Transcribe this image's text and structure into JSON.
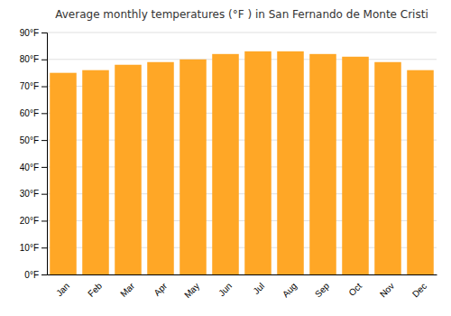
{
  "chart_data": {
    "type": "bar",
    "title": "Average monthly temperatures (°F ) in San Fernando de Monte Cristi",
    "categories": [
      "Jan",
      "Feb",
      "Mar",
      "Apr",
      "May",
      "Jun",
      "Jul",
      "Aug",
      "Sep",
      "Oct",
      "Nov",
      "Dec"
    ],
    "values": [
      75,
      76,
      78,
      79,
      80,
      82,
      83,
      83,
      82,
      81,
      79,
      76
    ],
    "color": "#FFA726",
    "ylim": [
      0,
      90
    ],
    "yticks": [
      {
        "value": 0,
        "label": "0°F"
      },
      {
        "value": 10,
        "label": "10°F"
      },
      {
        "value": 20,
        "label": "20°F"
      },
      {
        "value": 30,
        "label": "30°F"
      },
      {
        "value": 40,
        "label": "40°F"
      },
      {
        "value": 50,
        "label": "50°F"
      },
      {
        "value": 60,
        "label": "60°F"
      },
      {
        "value": 70,
        "label": "70°F"
      },
      {
        "value": 80,
        "label": "80°F"
      },
      {
        "value": 90,
        "label": "90°F"
      }
    ],
    "grid": true
  }
}
